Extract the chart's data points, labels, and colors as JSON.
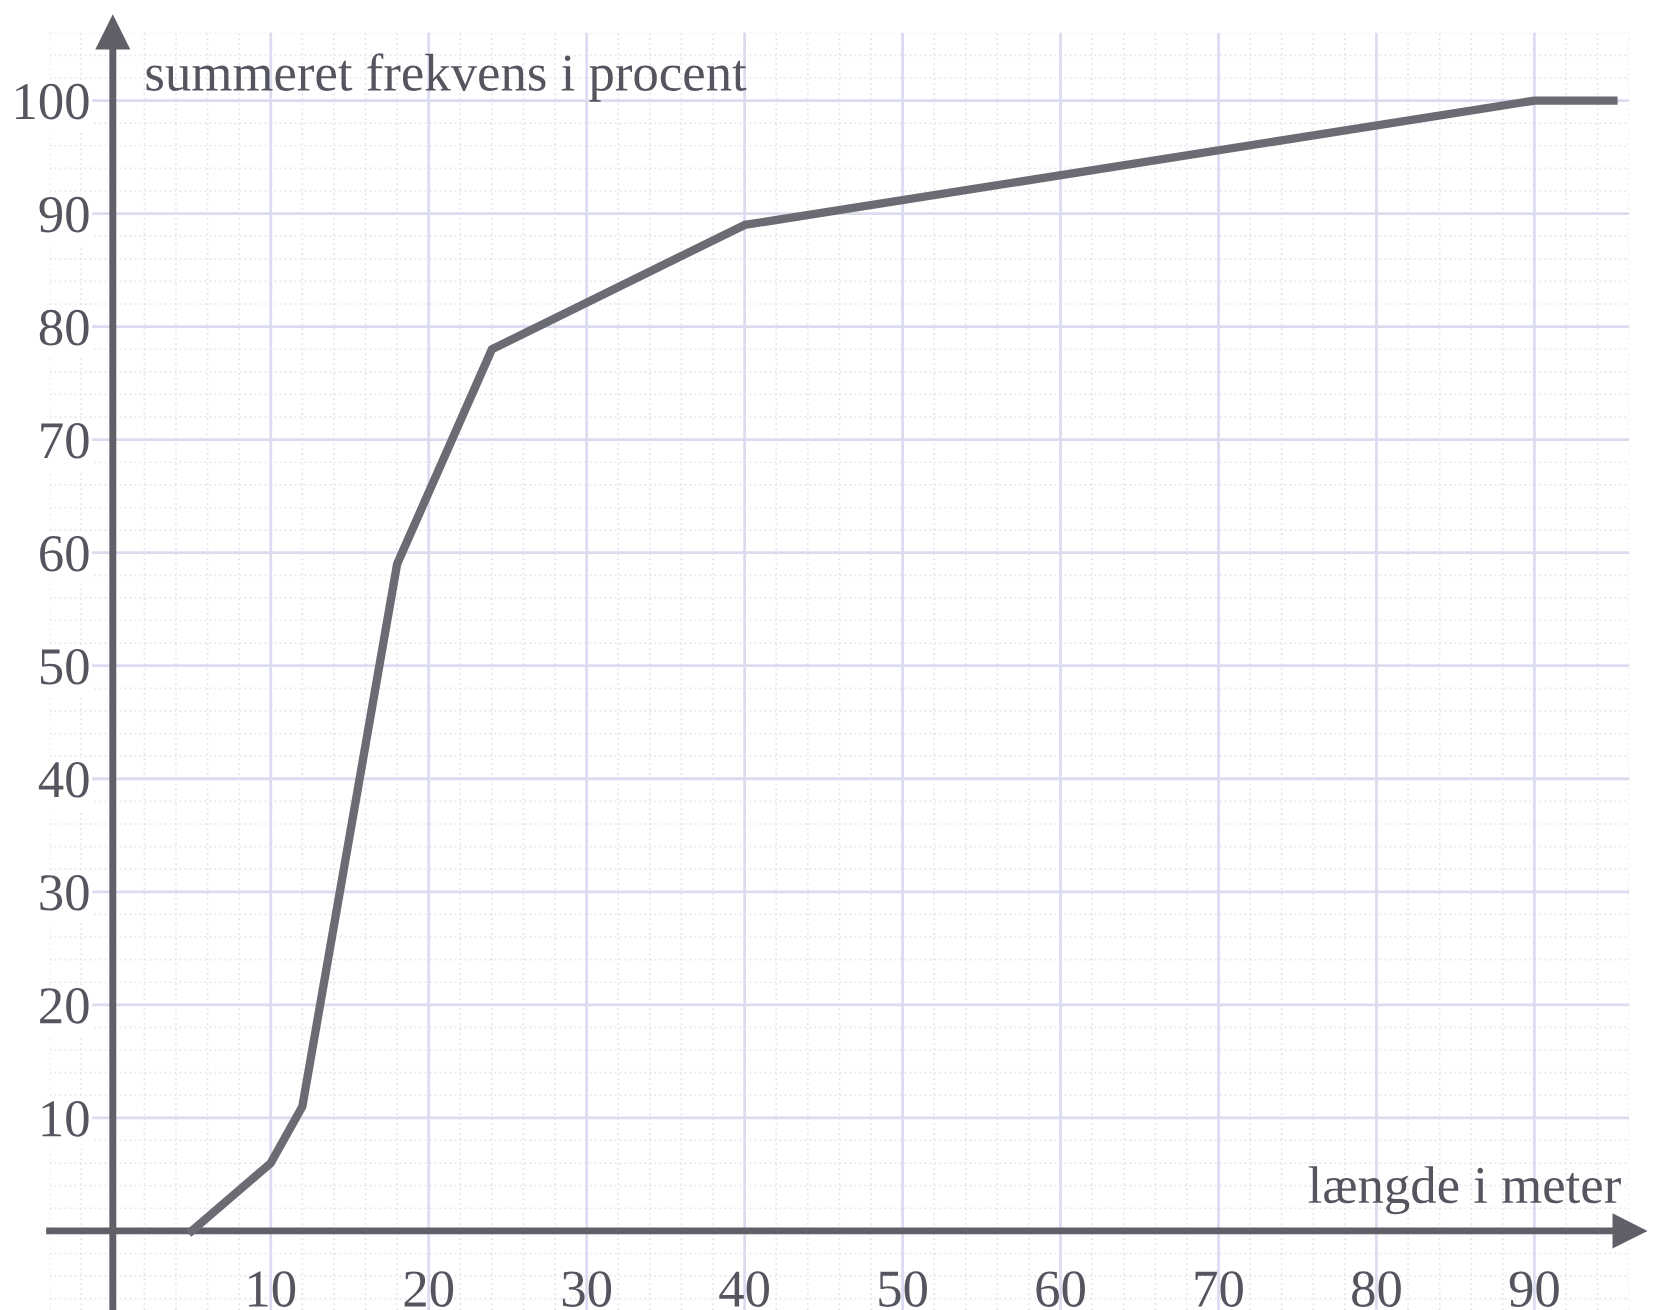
{
  "chart_data": {
    "type": "line",
    "xlabel": "længde i meter",
    "ylabel": "summeret frekvens i procent",
    "x": [
      5,
      10,
      12,
      18,
      24,
      40,
      90,
      95
    ],
    "series": [
      {
        "color": "#6b6b73",
        "values": [
          0,
          6,
          11,
          59,
          78,
          89,
          100,
          100
        ]
      }
    ],
    "xlim": [
      -4,
      96
    ],
    "ylim": [
      -7,
      106
    ],
    "xticks": [
      10,
      20,
      30,
      40,
      50,
      60,
      70,
      80,
      90
    ],
    "yticks": [
      10,
      20,
      30,
      40,
      50,
      60,
      70,
      80,
      90,
      100
    ],
    "grid": true,
    "marker": "none",
    "line_style": "solid"
  }
}
